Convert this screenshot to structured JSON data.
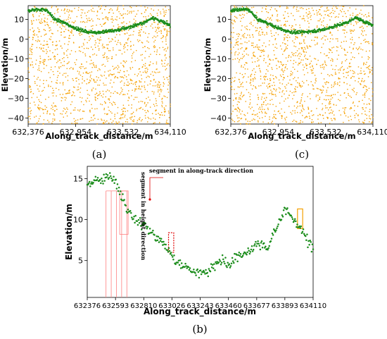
{
  "colors": {
    "noise": "#f5a000",
    "signal": "#1a8c1a",
    "segment": "#ff8080",
    "box_red": "#e00000",
    "box_orange": "#f5a000",
    "arrow": "#e00000"
  },
  "chart_data": [
    {
      "id": "a",
      "type": "scatter",
      "panel_label": "(a)",
      "xlabel": "Along_track_distance/m",
      "ylabel": "Elevation/m",
      "xlim": [
        632376,
        634110
      ],
      "ylim": [
        -43,
        17
      ],
      "xticks": [
        632376,
        632954,
        633532,
        634110
      ],
      "xtick_labels": [
        "632,376",
        "632,954",
        "633,532",
        "634,110"
      ],
      "yticks": [
        10,
        0,
        -10,
        -20,
        -30,
        -40
      ],
      "ytick_labels": [
        "10",
        "0",
        "−10",
        "−20",
        "−30",
        "−40"
      ],
      "series": [
        {
          "role": "noise",
          "count": 1400,
          "x_range": [
            632376,
            634110
          ],
          "y_range": [
            -43,
            17
          ]
        },
        {
          "role": "signal",
          "profile": [
            [
              632376,
              14.5
            ],
            [
              632500,
              15.0
            ],
            [
              632593,
              15.0
            ],
            [
              632650,
              12.5
            ],
            [
              632700,
              10.0
            ],
            [
              632810,
              8.5
            ],
            [
              632900,
              6.5
            ],
            [
              633026,
              4.5
            ],
            [
              633130,
              3.5
            ],
            [
              633243,
              3.5
            ],
            [
              633350,
              4.0
            ],
            [
              633460,
              4.5
            ],
            [
              633560,
              5.5
            ],
            [
              633677,
              7.0
            ],
            [
              633800,
              8.5
            ],
            [
              633893,
              11.0
            ],
            [
              634000,
              9.0
            ],
            [
              634110,
              7.0
            ]
          ]
        }
      ]
    },
    {
      "id": "c",
      "type": "scatter",
      "panel_label": "(c)",
      "xlabel": "Along_track_distance/m",
      "ylabel": "Elevation/m",
      "xlim": [
        632376,
        634110
      ],
      "ylim": [
        -43,
        17
      ],
      "xticks": [
        632376,
        632954,
        633532,
        634110
      ],
      "xtick_labels": [
        "632,376",
        "632,954",
        "633,532",
        "634,110"
      ],
      "yticks": [
        10,
        0,
        -10,
        -20,
        -30,
        -40
      ],
      "ytick_labels": [
        "10",
        "0",
        "−10",
        "−20",
        "−30",
        "−40"
      ],
      "series": [
        {
          "role": "noise",
          "count": 1400,
          "x_range": [
            632376,
            634110
          ],
          "y_range": [
            -43,
            17
          ]
        },
        {
          "role": "signal",
          "profile": [
            [
              632376,
              14.5
            ],
            [
              632500,
              15.0
            ],
            [
              632593,
              15.0
            ],
            [
              632650,
              12.5
            ],
            [
              632700,
              10.0
            ],
            [
              632810,
              8.5
            ],
            [
              632900,
              6.5
            ],
            [
              633026,
              4.5
            ],
            [
              633130,
              3.5
            ],
            [
              633243,
              3.5
            ],
            [
              633350,
              4.0
            ],
            [
              633460,
              4.5
            ],
            [
              633560,
              5.5
            ],
            [
              633677,
              7.0
            ],
            [
              633800,
              8.5
            ],
            [
              633893,
              11.0
            ],
            [
              634000,
              9.0
            ],
            [
              634110,
              7.0
            ]
          ]
        }
      ]
    },
    {
      "id": "b",
      "type": "scatter",
      "panel_label": "(b)",
      "xlabel": "Along_track_distance/m",
      "ylabel": "Elevation/m",
      "xlim": [
        632376,
        634110
      ],
      "ylim": [
        0.5,
        16.5
      ],
      "xticks": [
        632376,
        632593,
        632810,
        633026,
        633243,
        633460,
        633677,
        633893,
        634110
      ],
      "xtick_labels": [
        "632376",
        "632593",
        "632810",
        "633026",
        "633243",
        "633460",
        "633677",
        "633893",
        "634110"
      ],
      "yticks": [
        15,
        10,
        5
      ],
      "ytick_labels": [
        "15",
        "10",
        "5"
      ],
      "series": [
        {
          "role": "signal",
          "profile": [
            [
              632376,
              14.0
            ],
            [
              632450,
              14.8
            ],
            [
              632520,
              15.2
            ],
            [
              632593,
              15.0
            ],
            [
              632620,
              13.5
            ],
            [
              632660,
              12.0
            ],
            [
              632700,
              10.5
            ],
            [
              632760,
              9.8
            ],
            [
              632810,
              9.3
            ],
            [
              632880,
              8.0
            ],
            [
              632960,
              7.2
            ],
            [
              633026,
              5.5
            ],
            [
              633080,
              4.5
            ],
            [
              633150,
              4.0
            ],
            [
              633243,
              3.5
            ],
            [
              633300,
              3.5
            ],
            [
              633380,
              5.0
            ],
            [
              633460,
              4.5
            ],
            [
              633560,
              5.5
            ],
            [
              633677,
              7.0
            ],
            [
              633760,
              6.5
            ],
            [
              633820,
              8.5
            ],
            [
              633893,
              11.5
            ],
            [
              633960,
              10.0
            ],
            [
              634030,
              8.5
            ],
            [
              634110,
              6.5
            ]
          ]
        }
      ],
      "annotations": {
        "segment_x": [
          632520,
          632560,
          632600,
          632640,
          632680
        ],
        "segment_y": [
          0.5,
          13.5
        ],
        "height_box": {
          "x": [
            632625,
            632690
          ],
          "y": [
            8.2,
            13.5
          ]
        },
        "red_box": {
          "x": [
            633000,
            633040
          ],
          "y": [
            6.0,
            8.4
          ]
        },
        "orange_box": {
          "x": [
            633990,
            634030
          ],
          "y": [
            8.9,
            11.3
          ]
        },
        "text_along": "segment in along-track direction",
        "text_height": "segment in height direction"
      }
    }
  ]
}
